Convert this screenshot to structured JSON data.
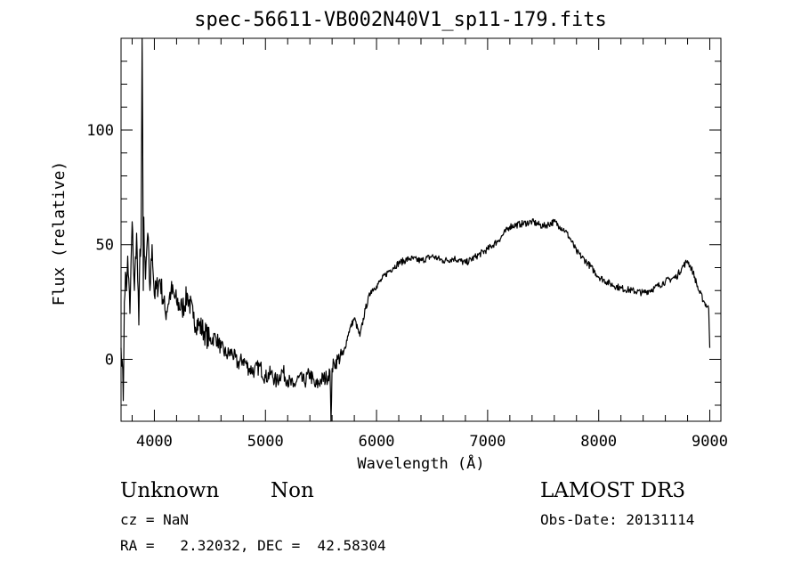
{
  "chart_data": {
    "type": "line",
    "title": "spec-56611-VB002N40V1_sp11-179.fits",
    "xlabel": "Wavelength (Å)",
    "ylabel": "Flux (relative)",
    "xlim": [
      3700,
      9100
    ],
    "ylim": [
      -27,
      140
    ],
    "x_ticks": [
      4000,
      5000,
      6000,
      7000,
      8000,
      9000
    ],
    "y_ticks": [
      0,
      50,
      100
    ],
    "grid": false,
    "series": [
      {
        "x": [
          3700,
          3710,
          3720,
          3730,
          3740,
          3750,
          3760,
          3780,
          3800,
          3820,
          3840,
          3860,
          3870,
          3880,
          3890,
          3895,
          3900,
          3905,
          3910,
          3920,
          3940,
          3960,
          3980,
          4000,
          4050,
          4100,
          4150,
          4200,
          4250,
          4300,
          4350,
          4400,
          4450,
          4500,
          4550,
          4600,
          4650,
          4700,
          4750,
          4800,
          4850,
          4900,
          4950,
          5000,
          5050,
          5100,
          5150,
          5200,
          5250,
          5300,
          5350,
          5400,
          5450,
          5500,
          5550,
          5580,
          5590,
          5600,
          5620,
          5650,
          5700,
          5750,
          5800,
          5850,
          5900,
          5950,
          6000,
          6050,
          6100,
          6150,
          6200,
          6300,
          6400,
          6500,
          6600,
          6700,
          6800,
          6900,
          7000,
          7100,
          7200,
          7300,
          7400,
          7500,
          7600,
          7650,
          7700,
          7750,
          7800,
          7900,
          8000,
          8100,
          8200,
          8300,
          8400,
          8500,
          8600,
          8700,
          8750,
          8800,
          8850,
          8900,
          8950,
          8990,
          9000
        ],
        "y": [
          5,
          0,
          -18,
          25,
          38,
          30,
          45,
          20,
          60,
          30,
          55,
          15,
          48,
          50,
          140,
          100,
          30,
          62,
          45,
          35,
          55,
          30,
          50,
          28,
          35,
          20,
          30,
          25,
          22,
          28,
          18,
          15,
          12,
          8,
          10,
          5,
          2,
          3,
          -2,
          0,
          -4,
          -5,
          -3,
          -8,
          -6,
          -10,
          -5,
          -9,
          -12,
          -8,
          -10,
          -6,
          -12,
          -9,
          -8,
          -5,
          -28,
          -4,
          -2,
          0,
          2,
          12,
          18,
          10,
          22,
          30,
          32,
          35,
          38,
          40,
          42,
          44,
          43,
          45,
          43,
          44,
          42,
          45,
          48,
          52,
          58,
          59,
          60,
          58,
          60,
          58,
          56,
          52,
          47,
          42,
          36,
          33,
          31,
          30,
          29,
          31,
          34,
          36,
          40,
          43,
          38,
          30,
          25,
          22,
          5
        ]
      }
    ]
  },
  "info": {
    "class": "Unknown",
    "subclass": "Non",
    "survey": "LAMOST DR3",
    "cz": "cz = NaN",
    "obs_date": "Obs-Date: 20131114",
    "radec": "RA =   2.32032, DEC =  42.58304"
  }
}
